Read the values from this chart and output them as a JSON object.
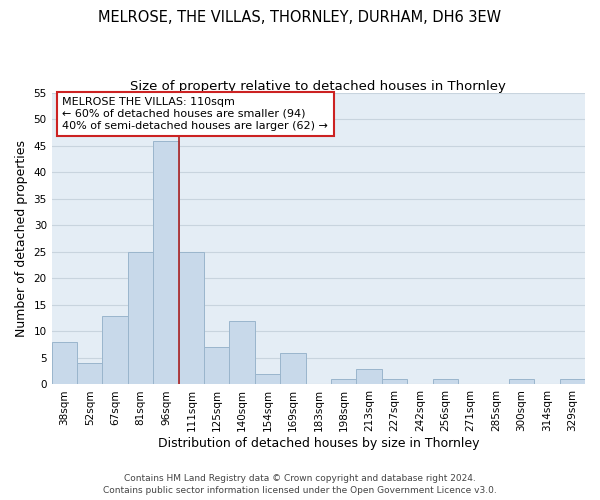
{
  "title": "MELROSE, THE VILLAS, THORNLEY, DURHAM, DH6 3EW",
  "subtitle": "Size of property relative to detached houses in Thornley",
  "xlabel": "Distribution of detached houses by size in Thornley",
  "ylabel": "Number of detached properties",
  "categories": [
    "38sqm",
    "52sqm",
    "67sqm",
    "81sqm",
    "96sqm",
    "111sqm",
    "125sqm",
    "140sqm",
    "154sqm",
    "169sqm",
    "183sqm",
    "198sqm",
    "213sqm",
    "227sqm",
    "242sqm",
    "256sqm",
    "271sqm",
    "285sqm",
    "300sqm",
    "314sqm",
    "329sqm"
  ],
  "values": [
    8,
    4,
    13,
    25,
    46,
    25,
    7,
    12,
    2,
    6,
    0,
    1,
    3,
    1,
    0,
    1,
    0,
    0,
    1,
    0,
    1
  ],
  "bar_color": "#c8d9ea",
  "bar_edge_color": "#9ab5cc",
  "property_line_index": 5,
  "property_line_color": "#aa2222",
  "annotation_line1": "MELROSE THE VILLAS: 110sqm",
  "annotation_line2": "← 60% of detached houses are smaller (94)",
  "annotation_line3": "40% of semi-detached houses are larger (62) →",
  "annotation_box_facecolor": "#ffffff",
  "annotation_box_edgecolor": "#cc2222",
  "ylim": [
    0,
    55
  ],
  "yticks": [
    0,
    5,
    10,
    15,
    20,
    25,
    30,
    35,
    40,
    45,
    50,
    55
  ],
  "grid_color": "#c8d4de",
  "background_color": "#e4edf5",
  "footer_line1": "Contains HM Land Registry data © Crown copyright and database right 2024.",
  "footer_line2": "Contains public sector information licensed under the Open Government Licence v3.0.",
  "title_fontsize": 10.5,
  "subtitle_fontsize": 9.5,
  "axis_label_fontsize": 9,
  "tick_fontsize": 7.5,
  "annotation_fontsize": 8,
  "footer_fontsize": 6.5
}
